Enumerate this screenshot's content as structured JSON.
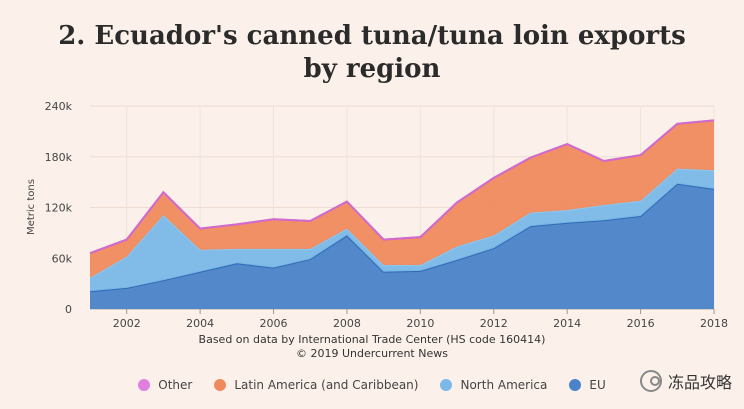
{
  "title_line1": "2. Ecuador's canned tuna/tuna loin exports",
  "title_line2": "by region",
  "source_line1": "Based on data by International Trade Center (HS code 160414)",
  "source_line2": "© 2019 Undercurrent News",
  "watermark": "冻品攻略",
  "chart_data": {
    "type": "area",
    "stacked": true,
    "ylabel": "Metric tons",
    "xlabel": "",
    "ylim": [
      0,
      240000
    ],
    "xlim": [
      2001,
      2018
    ],
    "yticks": [
      0,
      60000,
      120000,
      180000,
      240000
    ],
    "ytick_labels": [
      "0",
      "60k",
      "120k",
      "180k",
      "240k"
    ],
    "xticks": [
      2002,
      2004,
      2006,
      2008,
      2010,
      2012,
      2014,
      2016,
      2018
    ],
    "grid": true,
    "legend_position": "bottom",
    "x": [
      2001,
      2002,
      2003,
      2004,
      2005,
      2006,
      2007,
      2008,
      2009,
      2010,
      2011,
      2012,
      2013,
      2014,
      2015,
      2016,
      2017,
      2018
    ],
    "series": [
      {
        "name": "EU",
        "color": "#4a83c9",
        "values": [
          21000,
          25000,
          34000,
          44000,
          54000,
          49000,
          59000,
          87000,
          44000,
          45000,
          58000,
          72000,
          98000,
          102000,
          105000,
          110000,
          148000,
          142000
        ]
      },
      {
        "name": "North America",
        "color": "#7ab8e8",
        "values": [
          16000,
          37000,
          77000,
          26000,
          17000,
          22000,
          12000,
          8000,
          8000,
          7000,
          16000,
          15000,
          16000,
          15000,
          18000,
          18000,
          18000,
          22000
        ]
      },
      {
        "name": "Latin America (and Caribbean)",
        "color": "#f08a5d",
        "values": [
          29000,
          20000,
          27000,
          25000,
          29000,
          35000,
          33000,
          32000,
          30000,
          33000,
          52000,
          68000,
          65000,
          78000,
          52000,
          54000,
          53000,
          59000
        ]
      },
      {
        "name": "Other",
        "color": "#e07fe0",
        "values": [
          0,
          0,
          0,
          0,
          0,
          0,
          0,
          0,
          0,
          0,
          0,
          0,
          0,
          0,
          0,
          0,
          0,
          0
        ]
      }
    ],
    "legend": [
      "Other",
      "Latin America (and Caribbean)",
      "North America",
      "EU"
    ]
  }
}
